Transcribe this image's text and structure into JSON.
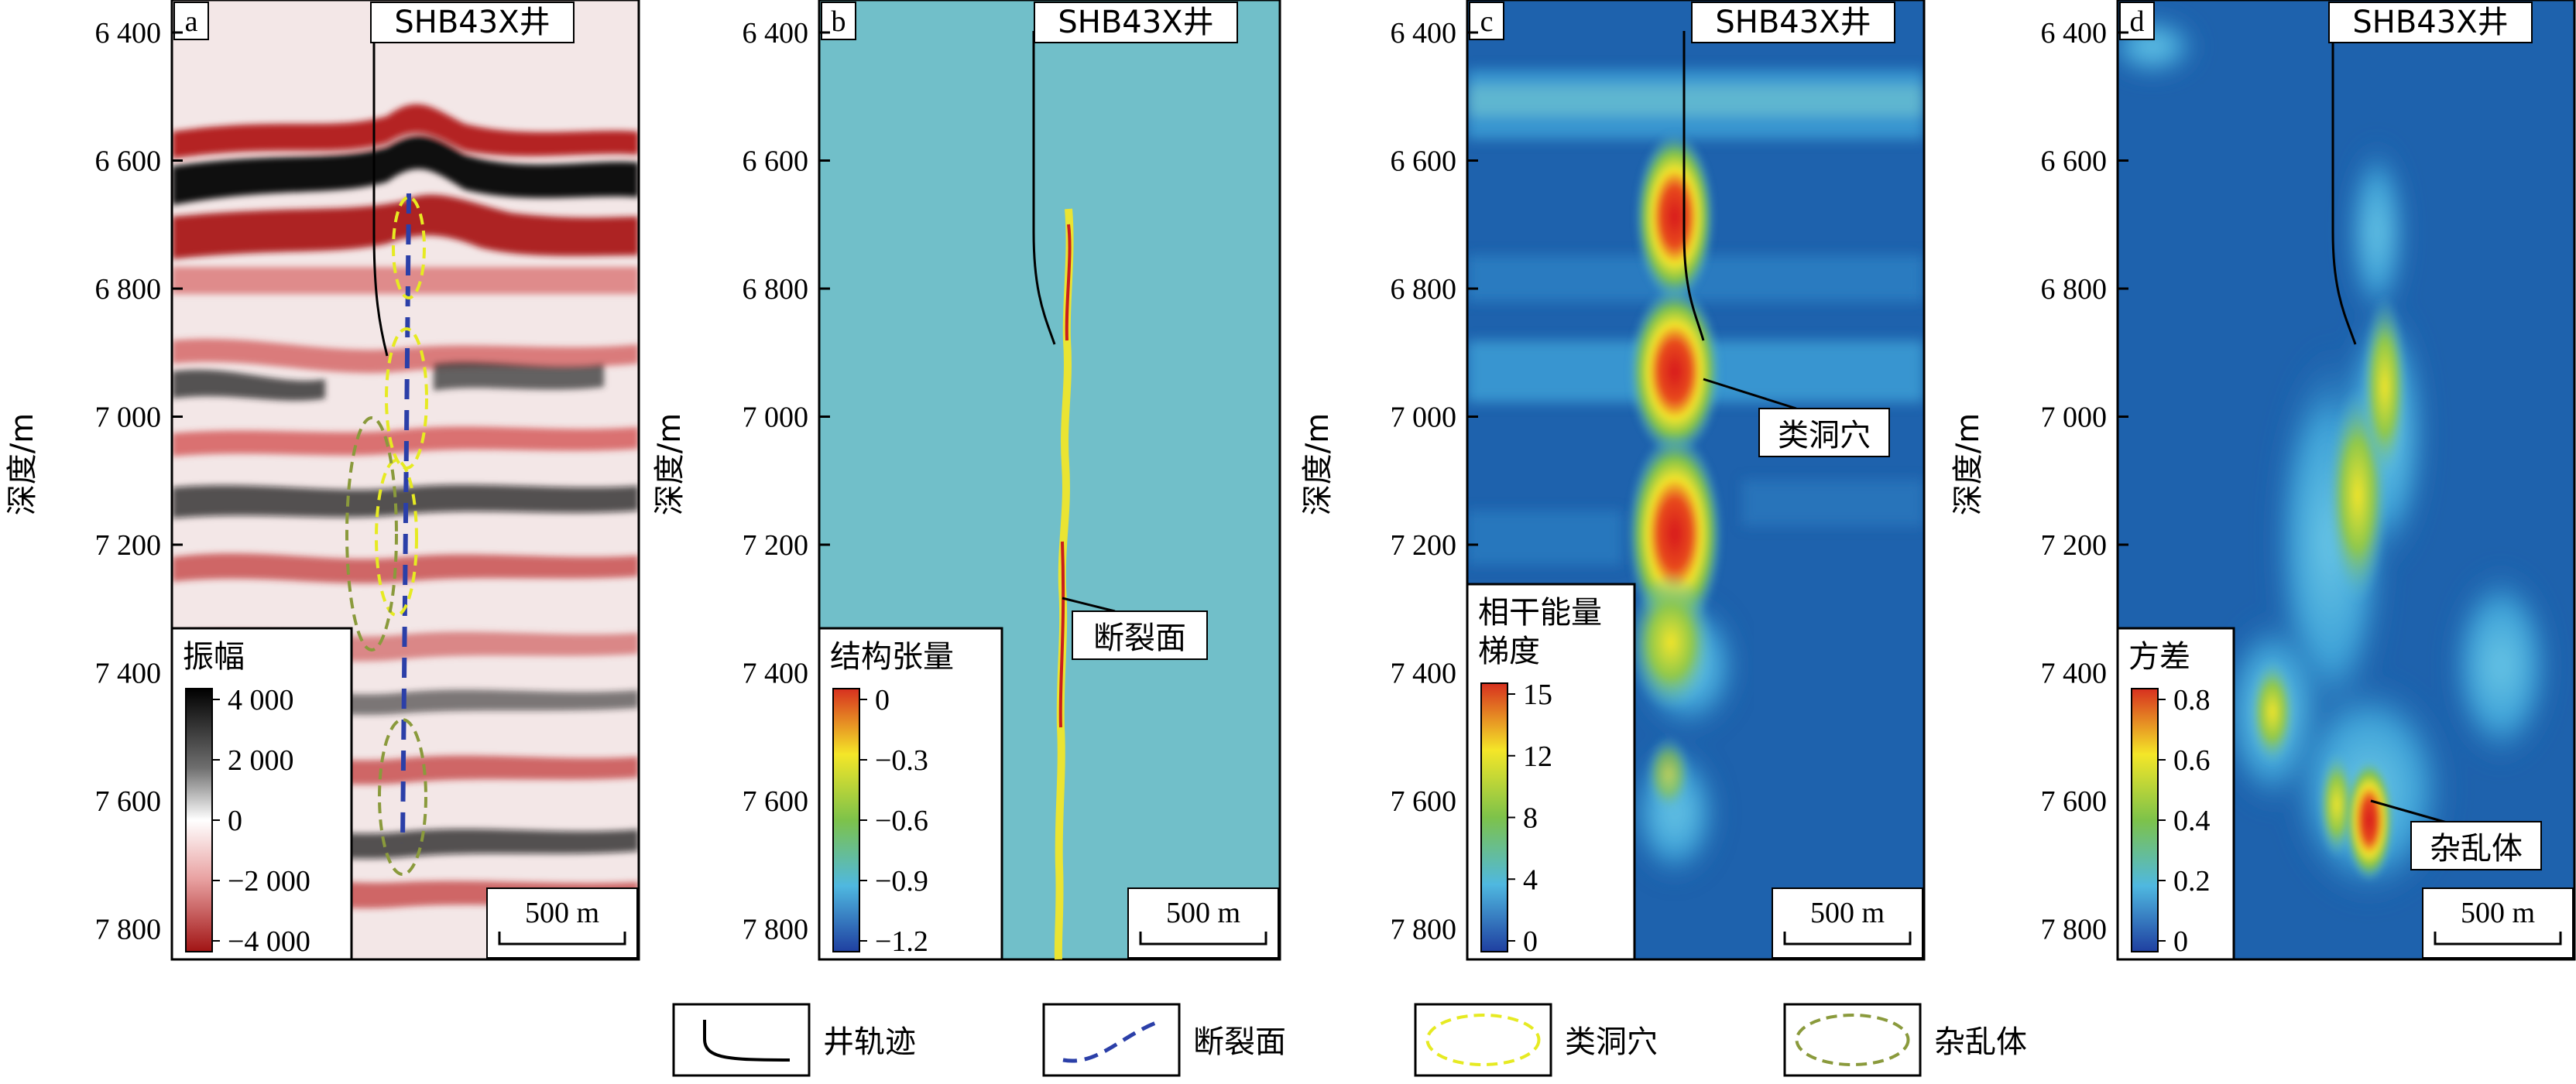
{
  "depth_axis": {
    "label": "深度/m",
    "ticks": [
      "6 400",
      "6 600",
      "6 800",
      "7 000",
      "7 200",
      "7 400",
      "7 600",
      "7 800"
    ]
  },
  "well_name": "SHB43X井",
  "scale_bar": "500 m",
  "panels": [
    {
      "letter": "a",
      "legend_title": "振幅",
      "legend_ticks": [
        "4 000",
        "2 000",
        "0",
        "−2 000",
        "−4 000"
      ],
      "colormap": [
        "#000000",
        "#6e6e6e",
        "#ffffff",
        "#e9a3a3",
        "#a11414"
      ],
      "callout": ""
    },
    {
      "letter": "b",
      "legend_title": "结构张量",
      "legend_ticks": [
        "0",
        "−0.3",
        "−0.6",
        "−0.9",
        "−1.2"
      ],
      "colormap": [
        "#d7301f",
        "#f4e628",
        "#7dc24a",
        "#4fb8e0",
        "#1f3fa0"
      ],
      "callout": "断裂面"
    },
    {
      "letter": "c",
      "legend_title": "相干能量\n梯度",
      "legend_ticks": [
        "15",
        "12",
        "8",
        "4",
        "0"
      ],
      "colormap": [
        "#d7301f",
        "#f4e628",
        "#7dc24a",
        "#4fb8e0",
        "#1f3fa0"
      ],
      "callout": "类洞穴"
    },
    {
      "letter": "d",
      "legend_title": "方差",
      "legend_ticks": [
        "0.8",
        "0.6",
        "0.4",
        "0.2",
        "0"
      ],
      "colormap": [
        "#d7301f",
        "#f4e628",
        "#7dc24a",
        "#4fb8e0",
        "#1f3fa0"
      ],
      "callout": "杂乱体"
    }
  ],
  "bottom_legend": [
    {
      "label": "井轨迹",
      "icon": "well-trajectory-icon"
    },
    {
      "label": "断裂面",
      "icon": "fault-plane-dashed-icon"
    },
    {
      "label": "类洞穴",
      "icon": "cave-ellipse-icon"
    },
    {
      "label": "杂乱体",
      "icon": "chaotic-body-ellipse-icon"
    }
  ],
  "colors": {
    "well_line": "#000000",
    "fault_line": "#2b3fa8",
    "cave_outline": "#e6ea22",
    "chaotic_outline": "#8a9a3c",
    "struct_background": "#71bfc9",
    "attr_background": "#1e62ad"
  }
}
